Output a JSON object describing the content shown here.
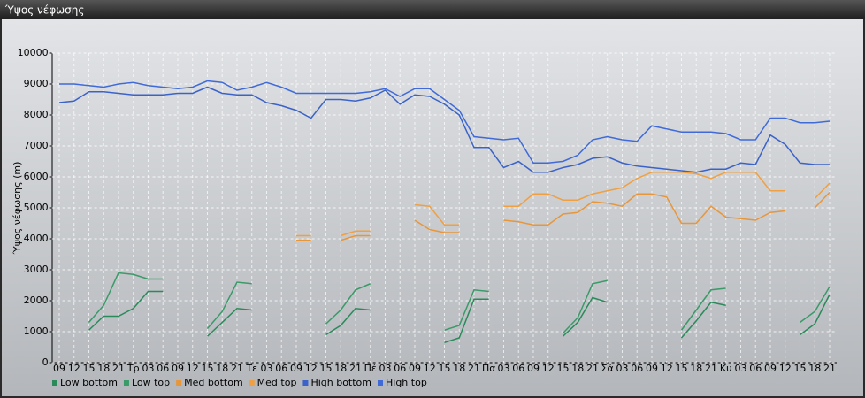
{
  "chart_data": {
    "type": "line",
    "title": "Ύψος νέφωσης",
    "ylabel": "Ύψος νέφωσης (m)",
    "categories": [
      "09",
      "12",
      "15",
      "18",
      "21",
      "Τρ",
      "03",
      "06",
      "09",
      "12",
      "15",
      "18",
      "21",
      "Τε",
      "03",
      "06",
      "09",
      "12",
      "15",
      "18",
      "21",
      "Πέ",
      "03",
      "06",
      "09",
      "12",
      "15",
      "18",
      "21",
      "Πα",
      "03",
      "06",
      "09",
      "12",
      "15",
      "18",
      "21",
      "Σά",
      "03",
      "06",
      "09",
      "12",
      "15",
      "18",
      "21",
      "Κυ",
      "03",
      "06",
      "09",
      "12",
      "15",
      "18",
      "21"
    ],
    "ylim": [
      0,
      10000
    ],
    "yticks": [
      0,
      1000,
      2000,
      3000,
      4000,
      5000,
      6000,
      7000,
      8000,
      9000,
      10000
    ],
    "grid": true,
    "series": [
      {
        "name": "Low bottom",
        "color": "#2a8a5a",
        "values": [
          null,
          null,
          1050,
          1500,
          1500,
          1750,
          2300,
          2300,
          null,
          null,
          850,
          1300,
          1750,
          1700,
          null,
          null,
          null,
          null,
          900,
          1200,
          1750,
          1700,
          null,
          null,
          null,
          null,
          650,
          800,
          2050,
          2050,
          null,
          null,
          null,
          null,
          850,
          1300,
          2100,
          1950,
          null,
          null,
          null,
          null,
          800,
          1350,
          1950,
          1850,
          null,
          null,
          null,
          null,
          900,
          1250,
          2200
        ]
      },
      {
        "name": "Low top",
        "color": "#3a9a68",
        "values": [
          null,
          null,
          1300,
          1850,
          2900,
          2850,
          2700,
          2700,
          null,
          null,
          1100,
          1650,
          2600,
          2550,
          null,
          null,
          null,
          null,
          1250,
          1700,
          2350,
          2550,
          null,
          null,
          null,
          null,
          1050,
          1200,
          2350,
          2300,
          null,
          null,
          null,
          null,
          950,
          1450,
          2550,
          2650,
          null,
          null,
          null,
          null,
          1050,
          1700,
          2350,
          2400,
          null,
          null,
          null,
          null,
          1300,
          1650,
          2450
        ]
      },
      {
        "name": "Med bottom",
        "color": "#e8963a",
        "values": [
          null,
          null,
          null,
          null,
          null,
          null,
          null,
          null,
          null,
          null,
          null,
          null,
          null,
          null,
          null,
          null,
          3950,
          3950,
          null,
          3950,
          4100,
          4100,
          null,
          null,
          4600,
          4300,
          4200,
          4200,
          null,
          null,
          4600,
          4550,
          4450,
          4450,
          4800,
          4850,
          5200,
          5150,
          5050,
          5450,
          5450,
          5350,
          4500,
          4500,
          5050,
          4700,
          4650,
          4600,
          4850,
          4900,
          null,
          5000,
          5500
        ]
      },
      {
        "name": "Med top",
        "color": "#f0a040",
        "values": [
          null,
          null,
          null,
          null,
          null,
          null,
          null,
          null,
          null,
          null,
          null,
          null,
          null,
          null,
          null,
          null,
          4100,
          4100,
          null,
          4100,
          4250,
          4250,
          null,
          null,
          5100,
          5050,
          4450,
          4450,
          null,
          null,
          5050,
          5050,
          5450,
          5450,
          5250,
          5250,
          5450,
          5550,
          5650,
          5950,
          6150,
          6150,
          6150,
          6100,
          5950,
          6150,
          6150,
          6150,
          5550,
          5550,
          null,
          5300,
          5800
        ]
      },
      {
        "name": "High bottom",
        "color": "#3a62c8",
        "values": [
          8400,
          8450,
          8750,
          8750,
          8700,
          8650,
          8650,
          8650,
          8700,
          8700,
          8900,
          8700,
          8650,
          8650,
          8400,
          8300,
          8150,
          7900,
          8500,
          8500,
          8450,
          8550,
          8800,
          8350,
          8650,
          8600,
          8350,
          8000,
          6950,
          6950,
          6300,
          6500,
          6150,
          6150,
          6300,
          6400,
          6600,
          6650,
          6450,
          6350,
          6300,
          6250,
          6200,
          6150,
          6250,
          6250,
          6450,
          6400,
          7350,
          7050,
          6450,
          6400,
          6400
        ]
      },
      {
        "name": "High top",
        "color": "#3f6ad8",
        "values": [
          9000,
          9000,
          8950,
          8900,
          9000,
          9050,
          8950,
          8900,
          8850,
          8900,
          9100,
          9050,
          8800,
          8900,
          9050,
          8900,
          8700,
          8700,
          8700,
          8700,
          8700,
          8750,
          8850,
          8600,
          8850,
          8850,
          8500,
          8150,
          7300,
          7250,
          7200,
          7250,
          6450,
          6450,
          6500,
          6700,
          7200,
          7300,
          7200,
          7150,
          7650,
          7550,
          7450,
          7450,
          7450,
          7400,
          7200,
          7200,
          7900,
          7900,
          7750,
          7750,
          7800
        ]
      }
    ]
  }
}
